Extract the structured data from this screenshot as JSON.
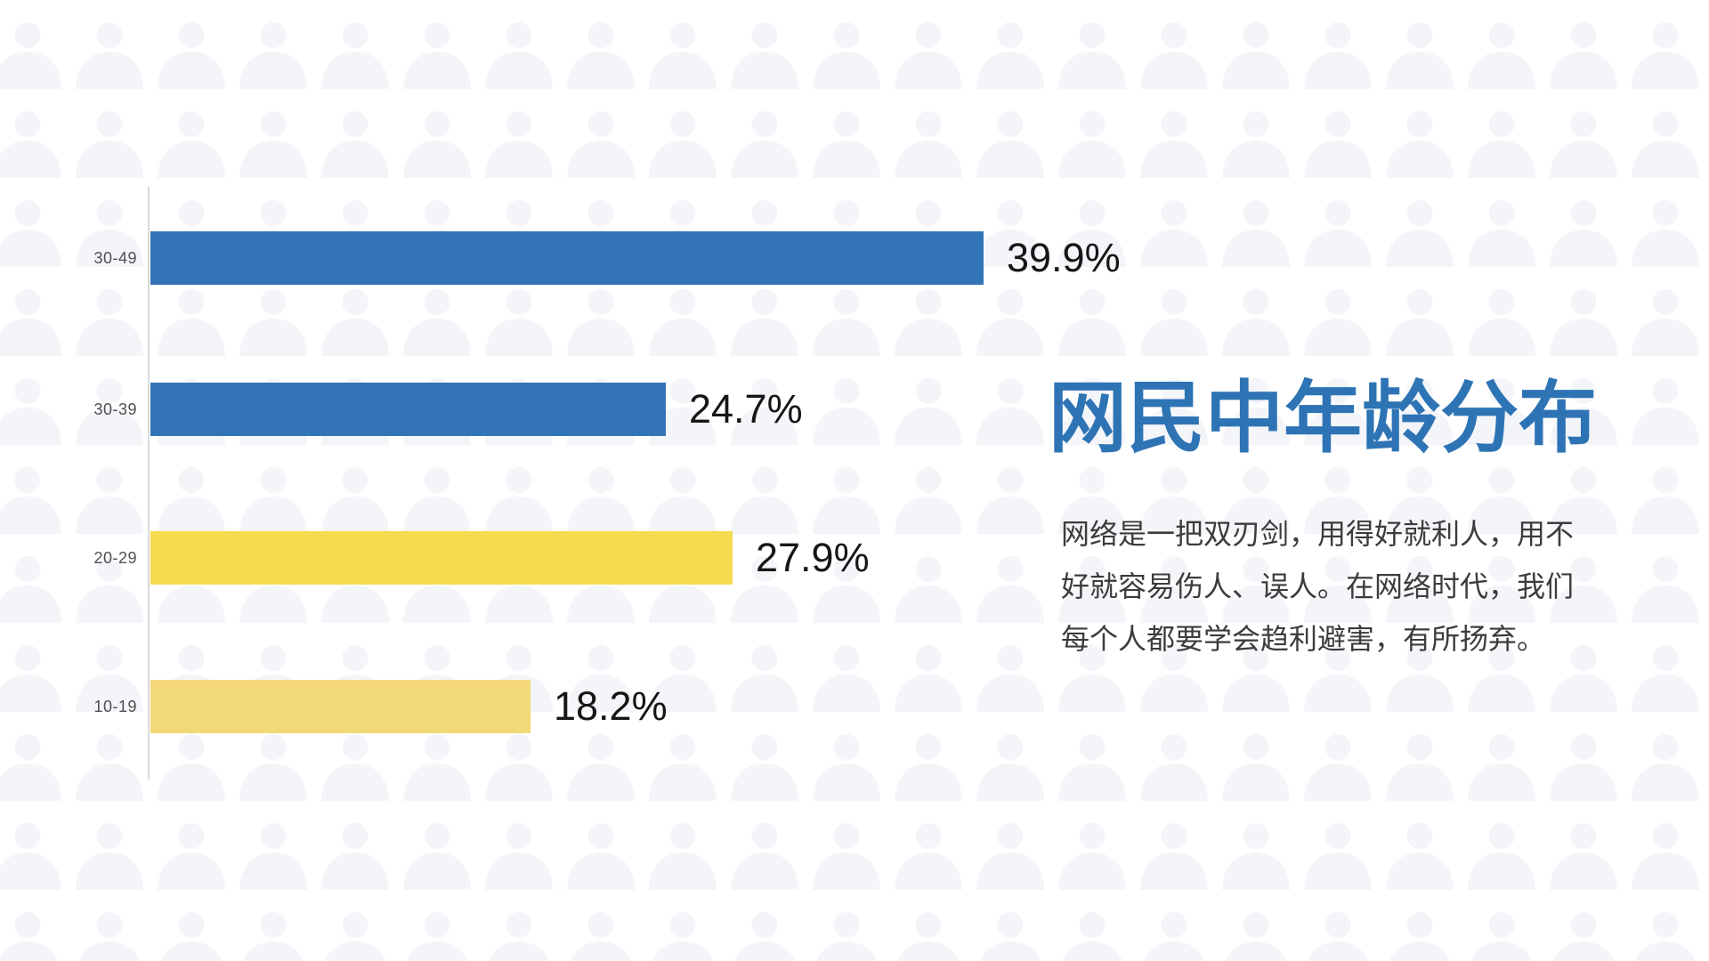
{
  "chart_data": {
    "type": "bar",
    "orientation": "horizontal",
    "title": "网民中年龄分布",
    "categories": [
      "30-49",
      "30-39",
      "20-29",
      "10-19"
    ],
    "values": [
      39.9,
      24.7,
      27.9,
      18.2
    ],
    "value_labels": [
      "39.9%",
      "24.7%",
      "27.9%",
      "18.2%"
    ],
    "bar_colors": [
      "#3274b5",
      "#3274b5",
      "#f6db4e",
      "#f3d877"
    ],
    "xlim": [
      0,
      40
    ],
    "grid": "off",
    "legend": "none",
    "axis_style": "single light-gray vertical baseline on the left, no ticks"
  },
  "panel": {
    "title": "网民中年龄分布",
    "title_color": "#2e74b5",
    "description_lines": [
      "网络是一把双刃剑，用得好就利人，用不",
      "好就容易伤人、误人。在网络时代，我们",
      "每个人都要学会趋利避害，有所扬弃。"
    ]
  },
  "background": {
    "pattern_icon": "person-silhouette",
    "pattern_color": "#f3f5f9",
    "base_color": "#ffffff"
  }
}
